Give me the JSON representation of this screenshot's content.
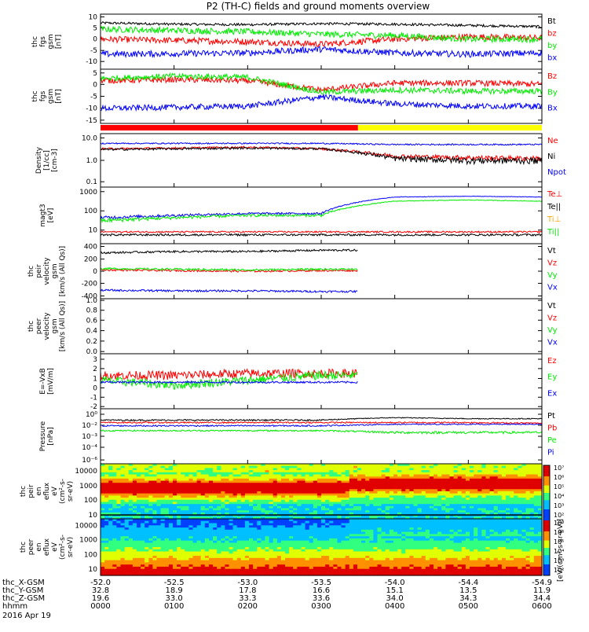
{
  "title": "P2 (TH-C) fields and ground moments overview",
  "colors": {
    "black": "#000000",
    "red": "#ff0000",
    "green": "#00ee00",
    "blue": "#0000ff",
    "yellow": "#ffff00",
    "orange": "#ffa500"
  },
  "panels": [
    {
      "id": "fgs-nt",
      "ylabel": [
        "thc",
        "fgs",
        "gsm",
        "[nT]"
      ],
      "ticks": [
        "10",
        "5",
        "0",
        "-5",
        "-10"
      ],
      "legend": [
        {
          "t": "Bt",
          "c": "black"
        },
        {
          "t": "bz",
          "c": "red"
        },
        {
          "t": "by",
          "c": "green"
        },
        {
          "t": "bx",
          "c": "blue"
        }
      ]
    },
    {
      "id": "fgs-deg",
      "ylabel": [
        "thc",
        "fgs",
        "gsm",
        "[nT]"
      ],
      "ticks": [
        "5",
        "0",
        "-5",
        "-10",
        "-15"
      ],
      "legend": [
        {
          "t": "Bz",
          "c": "red"
        },
        {
          "t": "By",
          "c": "green"
        },
        {
          "t": "Bx",
          "c": "blue"
        }
      ]
    },
    {
      "id": "density",
      "ylabel": [
        "Density",
        "[1/cc]",
        "[cm-3]"
      ],
      "ticks": [
        "10.0",
        "1.0",
        "0.1"
      ],
      "legend": [
        {
          "t": "Ne",
          "c": "red"
        },
        {
          "t": "Ni",
          "c": "black"
        },
        {
          "t": "Npot",
          "c": "blue"
        }
      ]
    },
    {
      "id": "temp",
      "ylabel": [
        "magt3",
        "[eV]"
      ],
      "ticks": [
        "1000",
        "100",
        "10"
      ],
      "legend": [
        {
          "t": "Te⊥",
          "c": "red"
        },
        {
          "t": "Te||",
          "c": "black"
        },
        {
          "t": "Ti⊥",
          "c": "orange"
        },
        {
          "t": "Ti||",
          "c": "green"
        }
      ]
    },
    {
      "id": "peir-vel",
      "ylabel": [
        "thc",
        "peir",
        "velocity",
        "gsm",
        "[km/s (All Qs)]"
      ],
      "ticks": [
        "400",
        "200",
        "0",
        "-200",
        "-400"
      ],
      "legend": [
        {
          "t": "Vt",
          "c": "black"
        },
        {
          "t": "Vz",
          "c": "red"
        },
        {
          "t": "Vy",
          "c": "green"
        },
        {
          "t": "Vx",
          "c": "blue"
        }
      ]
    },
    {
      "id": "peer-vel",
      "ylabel": [
        "thc",
        "peer",
        "velocity",
        "gsm",
        "[km/s (All Qs)]"
      ],
      "ticks": [
        "1.0",
        "0.8",
        "0.6",
        "0.4",
        "0.2",
        "0.0"
      ],
      "legend": [
        {
          "t": "Vt",
          "c": "black"
        },
        {
          "t": "Vz",
          "c": "red"
        },
        {
          "t": "Vy",
          "c": "green"
        },
        {
          "t": "Vx",
          "c": "blue"
        }
      ]
    },
    {
      "id": "efield",
      "ylabel": [
        "E=-VxB",
        "[mV/m]"
      ],
      "ticks": [
        "3",
        "2",
        "1",
        "0",
        "-1",
        "-2"
      ],
      "legend": [
        {
          "t": "Ez",
          "c": "red"
        },
        {
          "t": "Ey",
          "c": "green"
        },
        {
          "t": "Ex",
          "c": "blue"
        }
      ]
    },
    {
      "id": "pressure",
      "ylabel": [
        "Pressure",
        "[nPa]"
      ],
      "ticks": [
        "10⁰",
        "10⁻²",
        "10⁻³",
        "10⁻⁴",
        "10⁻⁶"
      ],
      "legend": [
        {
          "t": "Pt",
          "c": "black"
        },
        {
          "t": "Pb",
          "c": "red"
        },
        {
          "t": "Pe",
          "c": "green"
        },
        {
          "t": "Pi",
          "c": "blue"
        }
      ]
    },
    {
      "id": "peir-en",
      "ylabel": [
        "thc",
        "peir",
        "en",
        "eflux",
        "eV",
        "(cm²-s-",
        "sr-eV)"
      ],
      "ticks": [
        "10000",
        "1000",
        "100",
        "10"
      ],
      "legend": []
    },
    {
      "id": "peer-en",
      "ylabel": [
        "thc",
        "peer",
        "en",
        "eflux",
        "eV",
        "(cm²-s-",
        "sr-eV)"
      ],
      "ticks": [
        "10000",
        "1000",
        "100",
        "10"
      ],
      "legend": []
    }
  ],
  "colorbar": {
    "label": "[eV/(cm²-s-sr-eV)]",
    "upper_ticks": [
      "10⁷",
      "10⁶",
      "10⁵",
      "10⁴",
      "10³",
      "10²"
    ],
    "lower_ticks": [
      "10⁸",
      "10⁶",
      "10⁵",
      "10⁴",
      "10³",
      "10²"
    ]
  },
  "xaxis": {
    "row_labels": [
      "thc_X-GSM",
      "thc_Y-GSM",
      "thc_Z-GSM",
      "hhmm",
      "2016 Apr 19"
    ],
    "columns": [
      {
        "pos": "-52.0",
        "x": "32.8",
        "y": "19.6",
        "t": "0000"
      },
      {
        "pos": "-52.5",
        "x": "18.9",
        "y": "33.0",
        "t": "0100"
      },
      {
        "pos": "-53.0",
        "x": "17.8",
        "y": "33.3",
        "t": "0200"
      },
      {
        "pos": "-53.5",
        "x": "16.6",
        "y": "33.6",
        "t": "0300"
      },
      {
        "pos": "-54.0",
        "x": "15.1",
        "y": "34.0",
        "t": "0400"
      },
      {
        "pos": "-54.4",
        "x": "13.5",
        "y": "34.3",
        "t": "0500"
      },
      {
        "pos": "-54.9",
        "x": "11.9",
        "y": "34.4",
        "t": "0600"
      }
    ]
  },
  "chart_data": {
    "type": "line",
    "title": "P2 (TH-C) fields and ground moments overview",
    "x_time_hhmm": [
      "0000",
      "0100",
      "0200",
      "0300",
      "0400",
      "0500",
      "0600"
    ],
    "mode_bar": [
      {
        "from": "0000",
        "to": "0330",
        "color": "red"
      },
      {
        "from": "0330",
        "to": "0600",
        "color": "yellow"
      }
    ],
    "series": {
      "fgs_nt": [
        {
          "name": "Bt",
          "values": [
            7.5,
            7.0,
            6.8,
            7.2,
            7.0,
            6.5,
            6.0
          ]
        },
        {
          "name": "bz",
          "values": [
            1.0,
            0.5,
            0.0,
            -1.0,
            1.0,
            2.0,
            1.5
          ]
        },
        {
          "name": "by",
          "values": [
            5.0,
            4.5,
            4.0,
            3.0,
            2.5,
            1.0,
            1.0
          ]
        },
        {
          "name": "bx",
          "values": [
            -5.0,
            -4.8,
            -4.5,
            -3.0,
            -4.5,
            -5.0,
            -4.5
          ]
        }
      ],
      "fgs_deg": [
        {
          "name": "Bz",
          "values": [
            2.0,
            2.5,
            2.0,
            -2.0,
            1.0,
            1.0,
            0.5
          ]
        },
        {
          "name": "By",
          "values": [
            3.0,
            4.0,
            3.5,
            -3.0,
            -2.0,
            -2.5,
            -2.5
          ]
        },
        {
          "name": "Bx",
          "values": [
            -10.0,
            -9.5,
            -9.0,
            -5.0,
            -8.0,
            -9.0,
            -9.0
          ]
        }
      ],
      "density": [
        {
          "name": "Ne",
          "values": [
            3.0,
            3.2,
            3.5,
            3.0,
            1.5,
            1.3,
            1.2
          ]
        },
        {
          "name": "Ni",
          "values": [
            2.8,
            3.0,
            3.2,
            3.0,
            1.2,
            1.0,
            1.0
          ]
        },
        {
          "name": "Npot",
          "values": [
            5.0,
            5.0,
            5.0,
            5.0,
            4.5,
            4.5,
            4.5
          ]
        }
      ],
      "temperature": [
        {
          "name": "Te⊥",
          "values": [
            20,
            20,
            20,
            20,
            20,
            20,
            20
          ]
        },
        {
          "name": "Te||",
          "values": [
            15,
            15,
            15,
            15,
            15,
            15,
            15
          ]
        },
        {
          "name": "Ti⊥",
          "values": [
            80,
            100,
            120,
            120,
            600,
            650,
            600
          ]
        },
        {
          "name": "Ti||",
          "values": [
            60,
            80,
            100,
            100,
            400,
            450,
            400
          ]
        }
      ],
      "peir_velocity": [
        {
          "name": "Vt",
          "values": [
            280,
            300,
            300,
            320,
            null,
            null,
            null
          ]
        },
        {
          "name": "Vz",
          "values": [
            20,
            10,
            0,
            10,
            null,
            null,
            null
          ]
        },
        {
          "name": "Vy",
          "values": [
            40,
            30,
            20,
            30,
            null,
            null,
            null
          ]
        },
        {
          "name": "Vx",
          "values": [
            -290,
            -300,
            -300,
            -310,
            null,
            null,
            null
          ]
        }
      ],
      "efield": [
        {
          "name": "Ez",
          "values": [
            1.0,
            1.0,
            1.2,
            1.2,
            null,
            null,
            null
          ]
        },
        {
          "name": "Ey",
          "values": [
            0.5,
            0.0,
            0.5,
            1.0,
            null,
            null,
            null
          ]
        },
        {
          "name": "Ex",
          "values": [
            0.3,
            0.3,
            0.3,
            0.3,
            null,
            null,
            null
          ]
        }
      ],
      "pressure": [
        {
          "name": "Pt",
          "values": [
            0.1,
            0.1,
            0.1,
            0.1,
            0.2,
            0.15,
            0.15
          ]
        },
        {
          "name": "Pb",
          "values": [
            0.05,
            0.05,
            0.05,
            0.05,
            0.05,
            0.05,
            0.04
          ]
        },
        {
          "name": "Pe",
          "values": [
            0.005,
            0.005,
            0.005,
            0.005,
            0.003,
            0.003,
            0.003
          ]
        },
        {
          "name": "Pi",
          "values": [
            0.02,
            0.02,
            0.02,
            0.02,
            0.03,
            0.03,
            0.03
          ]
        }
      ]
    }
  }
}
